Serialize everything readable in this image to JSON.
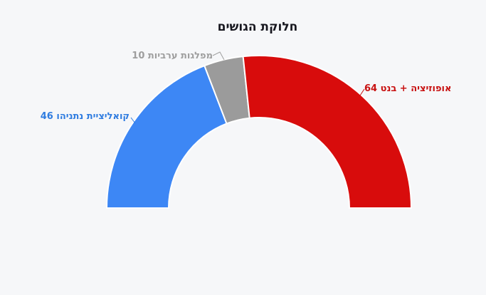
{
  "page": {
    "background_color": "#f6f7f9"
  },
  "chart_data": {
    "type": "pie",
    "subtype": "half-donut",
    "title": "חלוקת הגושים",
    "total": 120,
    "start_angle_deg": 180,
    "end_angle_deg": 0,
    "inner_radius_ratio": 0.59,
    "separator_color": "#ffffff",
    "legend_position": "none",
    "segments": [
      {
        "name": "קואליציית נתניהו",
        "value": 46,
        "label": "קואליציית נתניהו 46",
        "color": "#3d87f5",
        "label_color": "#2f7ce0"
      },
      {
        "name": "מפלגות ערביות",
        "value": 10,
        "label": "מפלגות ערביות 10",
        "color": "#9b9b9b",
        "label_color": "#9e9e9e"
      },
      {
        "name": "אופוזיציה + בנט",
        "value": 64,
        "label": "אופוזיציה + בנט 64",
        "color": "#d80c0c",
        "label_color": "#c81111"
      }
    ]
  }
}
